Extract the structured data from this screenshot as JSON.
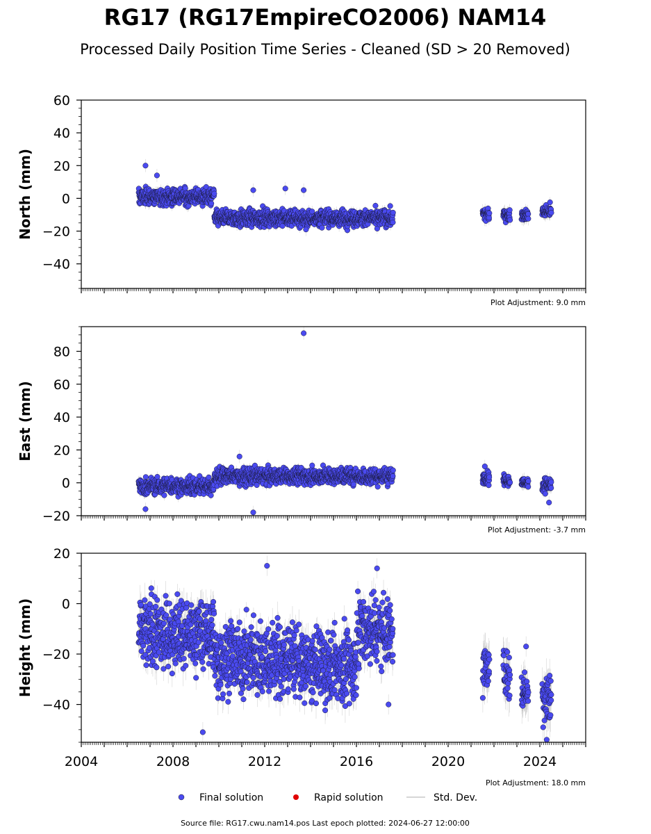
{
  "title": "RG17 (RG17EmpireCO2006) NAM14",
  "subtitle": "Processed Daily Position Time Series - Cleaned (SD > 20 Removed)",
  "footer": "Source file: RG17.cwu.nam14.pos  Last epoch plotted: 2024-06-27 12:00:00",
  "legend": [
    {
      "label": "Final solution",
      "color": "#4a4af0",
      "kind": "dot"
    },
    {
      "label": "Rapid solution",
      "color": "#e00000",
      "kind": "dot"
    },
    {
      "label": "Std. Dev.",
      "color": "#c8c8c8",
      "kind": "line"
    }
  ],
  "colors": {
    "final": "#4a4af0",
    "rapid": "#e00000",
    "sd": "#a0a0a0"
  },
  "chart_data": [
    {
      "type": "scatter",
      "ylabel": "North (mm)",
      "adjustment": "Plot Adjustment: 9.0 mm",
      "xlim": [
        2004,
        2026
      ],
      "ylim": [
        -55,
        60
      ],
      "yticks": [
        -40,
        -20,
        0,
        20,
        40,
        60
      ],
      "xticks": [
        2004,
        2008,
        2012,
        2016,
        2020,
        2024
      ],
      "show_xticklabels": false,
      "segments": [
        {
          "x0": 2006.5,
          "x1": 2009.8,
          "mean": 1,
          "noise": 2.5,
          "sd": 2.5
        },
        {
          "x0": 2009.8,
          "x1": 2017.6,
          "mean": -12,
          "noise": 2.5,
          "sd": 2.5
        },
        {
          "x0": 2021.5,
          "x1": 2021.8,
          "mean": -10,
          "noise": 2,
          "sd": 3
        },
        {
          "x0": 2022.4,
          "x1": 2022.7,
          "mean": -10,
          "noise": 1.5,
          "sd": 3
        },
        {
          "x0": 2023.2,
          "x1": 2023.5,
          "mean": -10,
          "noise": 1.5,
          "sd": 3
        },
        {
          "x0": 2024.1,
          "x1": 2024.5,
          "mean": -8,
          "noise": 2,
          "sd": 3
        }
      ],
      "outliers": [
        {
          "x": 2006.8,
          "y": 20
        },
        {
          "x": 2007.3,
          "y": 14
        },
        {
          "x": 2011.5,
          "y": 5
        },
        {
          "x": 2012.9,
          "y": 6
        },
        {
          "x": 2013.7,
          "y": 5
        },
        {
          "x": 2013.8,
          "y": -19
        }
      ]
    },
    {
      "type": "scatter",
      "ylabel": "East (mm)",
      "adjustment": "Plot Adjustment: -3.7 mm",
      "xlim": [
        2004,
        2026
      ],
      "ylim": [
        -20,
        95
      ],
      "yticks": [
        -20,
        0,
        20,
        40,
        60,
        80
      ],
      "xticks": [
        2004,
        2008,
        2012,
        2016,
        2020,
        2024
      ],
      "show_xticklabels": false,
      "segments": [
        {
          "x0": 2006.5,
          "x1": 2009.8,
          "mean": -2,
          "noise": 2.5,
          "sd": 2.5
        },
        {
          "x0": 2009.8,
          "x1": 2017.6,
          "mean": 4,
          "noise": 2.5,
          "sd": 2.5
        },
        {
          "x0": 2021.5,
          "x1": 2021.8,
          "mean": 3,
          "noise": 2,
          "sd": 3
        },
        {
          "x0": 2022.4,
          "x1": 2022.7,
          "mean": 1,
          "noise": 1.5,
          "sd": 3
        },
        {
          "x0": 2023.2,
          "x1": 2023.5,
          "mean": 0,
          "noise": 1.5,
          "sd": 3
        },
        {
          "x0": 2024.1,
          "x1": 2024.5,
          "mean": -1,
          "noise": 2,
          "sd": 3
        }
      ],
      "outliers": [
        {
          "x": 2013.7,
          "y": 91
        },
        {
          "x": 2011.5,
          "y": -18
        },
        {
          "x": 2006.8,
          "y": -16
        },
        {
          "x": 2010.9,
          "y": 16
        },
        {
          "x": 2024.4,
          "y": -12
        },
        {
          "x": 2021.6,
          "y": 10
        }
      ]
    },
    {
      "type": "scatter",
      "ylabel": "Height (mm)",
      "adjustment": "Plot Adjustment: 18.0 mm",
      "xlim": [
        2004,
        2026
      ],
      "ylim": [
        -55,
        20
      ],
      "yticks": [
        -40,
        -20,
        0,
        20
      ],
      "xticks": [
        2004,
        2008,
        2012,
        2016,
        2020,
        2024
      ],
      "show_xticklabels": true,
      "segments": [
        {
          "x0": 2006.5,
          "x1": 2009.8,
          "mean": -12,
          "noise": 7,
          "sd": 5
        },
        {
          "x0": 2009.8,
          "x1": 2013.5,
          "mean": -22,
          "noise": 7,
          "sd": 5
        },
        {
          "x0": 2013.5,
          "x1": 2016.0,
          "mean": -25,
          "noise": 7,
          "sd": 5
        },
        {
          "x0": 2016.0,
          "x1": 2017.6,
          "mean": -10,
          "noise": 7,
          "sd": 5
        },
        {
          "x0": 2021.5,
          "x1": 2021.8,
          "mean": -26,
          "noise": 5,
          "sd": 6
        },
        {
          "x0": 2022.4,
          "x1": 2022.7,
          "mean": -27,
          "noise": 5,
          "sd": 6
        },
        {
          "x0": 2023.2,
          "x1": 2023.5,
          "mean": -35,
          "noise": 4,
          "sd": 6
        },
        {
          "x0": 2024.1,
          "x1": 2024.5,
          "mean": -37,
          "noise": 6,
          "sd": 6
        }
      ],
      "outliers": [
        {
          "x": 2009.3,
          "y": -51
        },
        {
          "x": 2024.3,
          "y": -54
        },
        {
          "x": 2012.1,
          "y": 15
        },
        {
          "x": 2016.9,
          "y": 14
        },
        {
          "x": 2023.4,
          "y": -17
        },
        {
          "x": 2017.4,
          "y": -40
        }
      ]
    }
  ]
}
